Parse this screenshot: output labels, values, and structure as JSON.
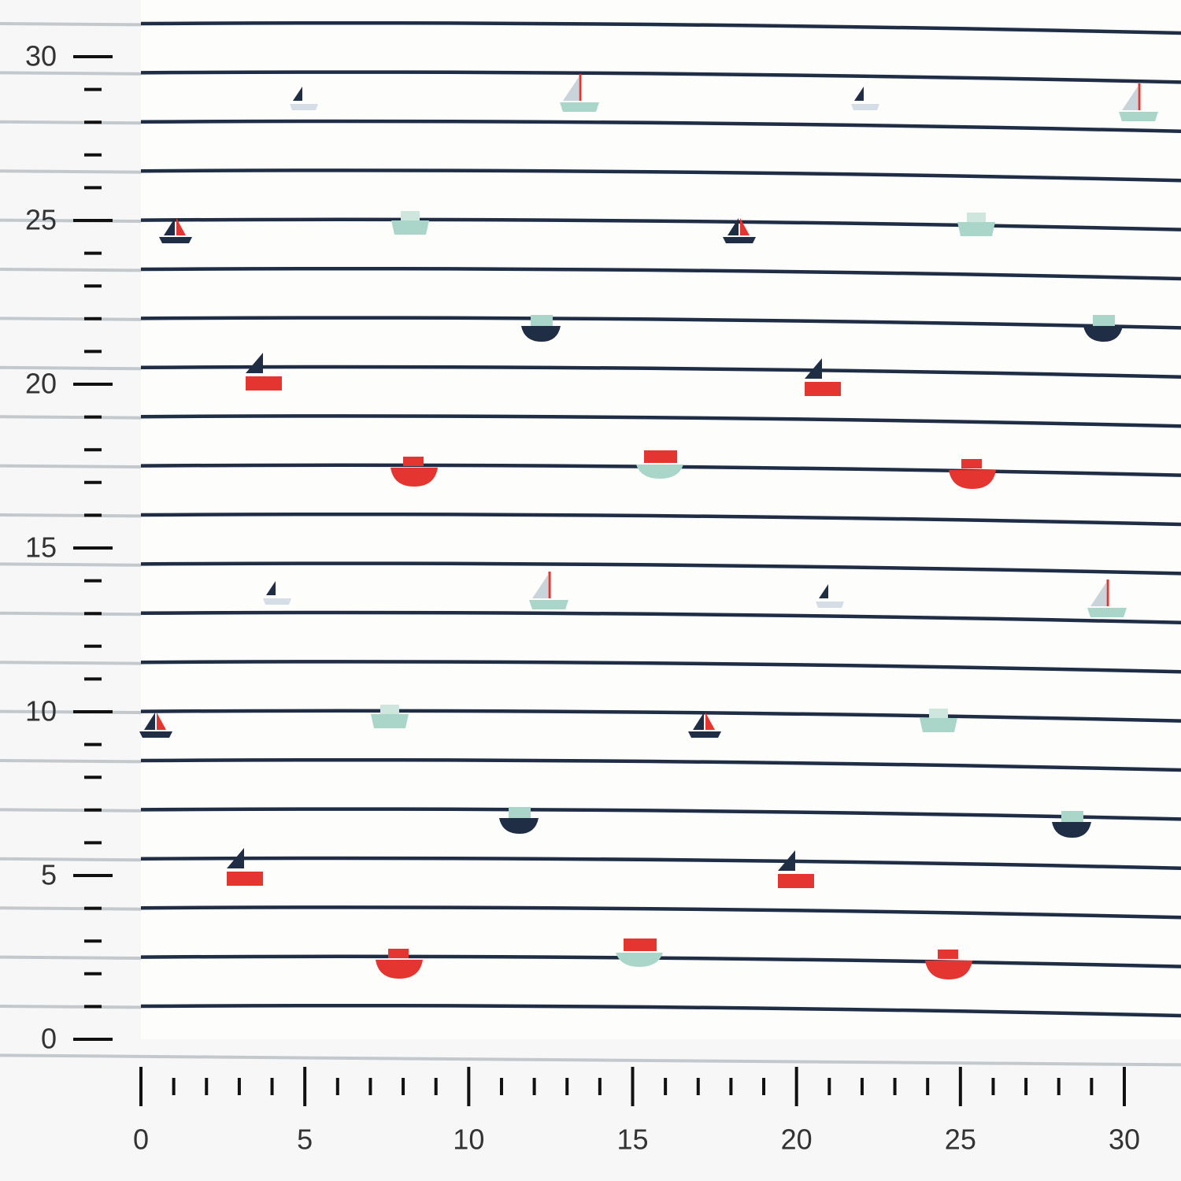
{
  "rulers": {
    "vertical": {
      "labels": [
        0,
        5,
        10,
        15,
        20,
        25,
        30
      ]
    },
    "horizontal": {
      "labels": [
        0,
        5,
        10,
        15,
        20,
        25,
        30
      ]
    }
  }
}
